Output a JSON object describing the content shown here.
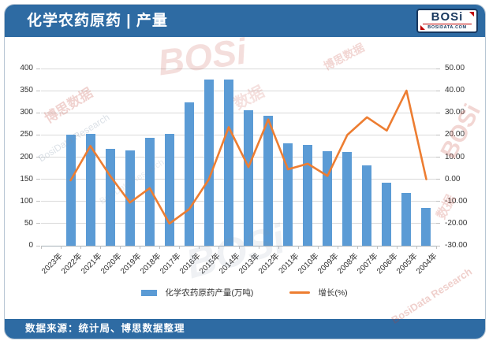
{
  "header": {
    "title": "化学农药原药 | 产量",
    "logo": {
      "brand": "BOSi",
      "domain": "BOSIDATA.COM"
    }
  },
  "footer": {
    "source": "数据来源：统计局、博思数据整理"
  },
  "watermarks": [
    "BOSi",
    "博思数据",
    "BosiData Research",
    "数据"
  ],
  "chart_data": {
    "type": "bar",
    "subtype": "bar+line combo, dual axis",
    "categories": [
      "2023年",
      "2022年",
      "2021年",
      "2020年",
      "2019年",
      "2018年",
      "2017年",
      "2016年",
      "2015年",
      "2014年",
      "2013年",
      "2012年",
      "2011年",
      "2010年",
      "2009年",
      "2008年",
      "2007年",
      "2006年",
      "2005年",
      "2004年"
    ],
    "series": [
      {
        "name": "化学农药原药产量(万吨)",
        "type": "bar",
        "axis": "left",
        "color": "#5b9bd5",
        "values": [
          null,
          250,
          252.5,
          219.5,
          214.5,
          243,
          253,
          323,
          376,
          376,
          305,
          293.5,
          231,
          227,
          213.5,
          212,
          180.5,
          142,
          118.5,
          86
        ]
      },
      {
        "name": "增长(%)",
        "type": "line",
        "axis": "right",
        "color": "#ed7d31",
        "values": [
          null,
          -0.5,
          15.0,
          1.5,
          -10.5,
          -4.0,
          -20.0,
          -13.5,
          0.0,
          23.5,
          5.5,
          27.0,
          4.5,
          7.0,
          1.5,
          20.0,
          28.0,
          22.0,
          40.0,
          0.0
        ]
      }
    ],
    "left_axis": {
      "min": 0,
      "max": 400,
      "step": 50,
      "ticks_top_to_bottom": [
        "400",
        "350",
        "300",
        "250",
        "200",
        "150",
        "100",
        "50",
        "0"
      ]
    },
    "right_axis": {
      "min": -30,
      "max": 50,
      "step": 10,
      "ticks_top_to_bottom": [
        "50.00",
        "40.00",
        "30.00",
        "20.00",
        "10.00",
        "0.00",
        "-10.00",
        "-20.00",
        "-30.00"
      ]
    },
    "legend_position": "bottom",
    "grid": true,
    "note": "2023年 category shown with no data (no bar, no line point)"
  }
}
